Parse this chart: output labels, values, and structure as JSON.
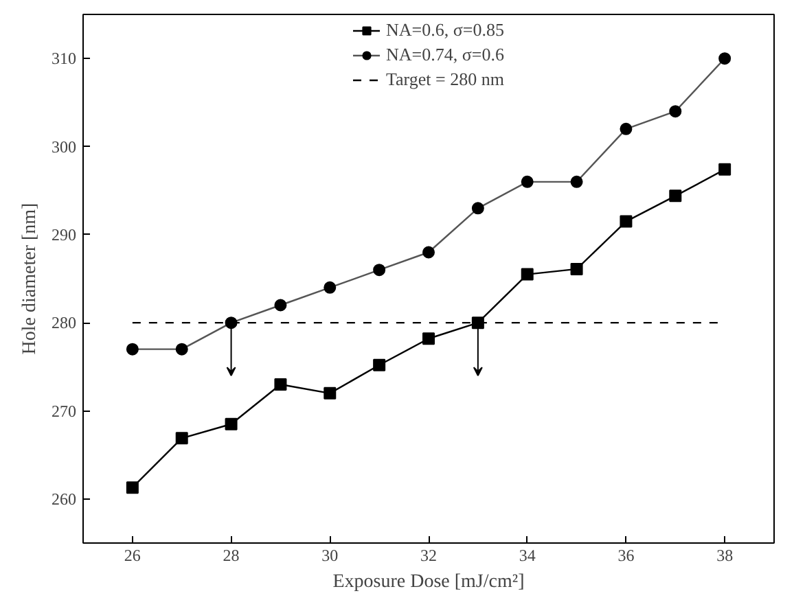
{
  "chart_data": {
    "type": "line",
    "xlabel": "Exposure Dose [mJ/cm²]",
    "ylabel": "Hole diameter [nm]",
    "x": [
      26,
      27,
      28,
      29,
      30,
      31,
      32,
      33,
      34,
      35,
      36,
      37,
      38
    ],
    "series": [
      {
        "name": "NA=0.6, σ=0.85",
        "color": "#000000",
        "marker": "square",
        "values": [
          261.3,
          266.9,
          268.5,
          273,
          272,
          275.2,
          278.2,
          280,
          285.5,
          286.1,
          291.5,
          294.4,
          297.4
        ]
      },
      {
        "name": "NA=0.74, σ=0.6",
        "color": "#555555",
        "marker": "circle",
        "values": [
          277,
          277,
          280,
          282,
          284,
          286,
          288,
          293,
          296,
          296,
          302,
          304,
          310
        ]
      }
    ],
    "ref_lines": [
      {
        "axis": "y",
        "value": 280,
        "label": "Target = 280 nm",
        "color": "#000000",
        "line_style": "dashed"
      }
    ],
    "xlim": [
      25,
      39
    ],
    "xticks": [
      26,
      28,
      30,
      32,
      34,
      36,
      38
    ],
    "ylim": [
      255,
      315
    ],
    "yticks": [
      260,
      270,
      280,
      290,
      300,
      310
    ],
    "grid": false,
    "legend": "top"
  }
}
